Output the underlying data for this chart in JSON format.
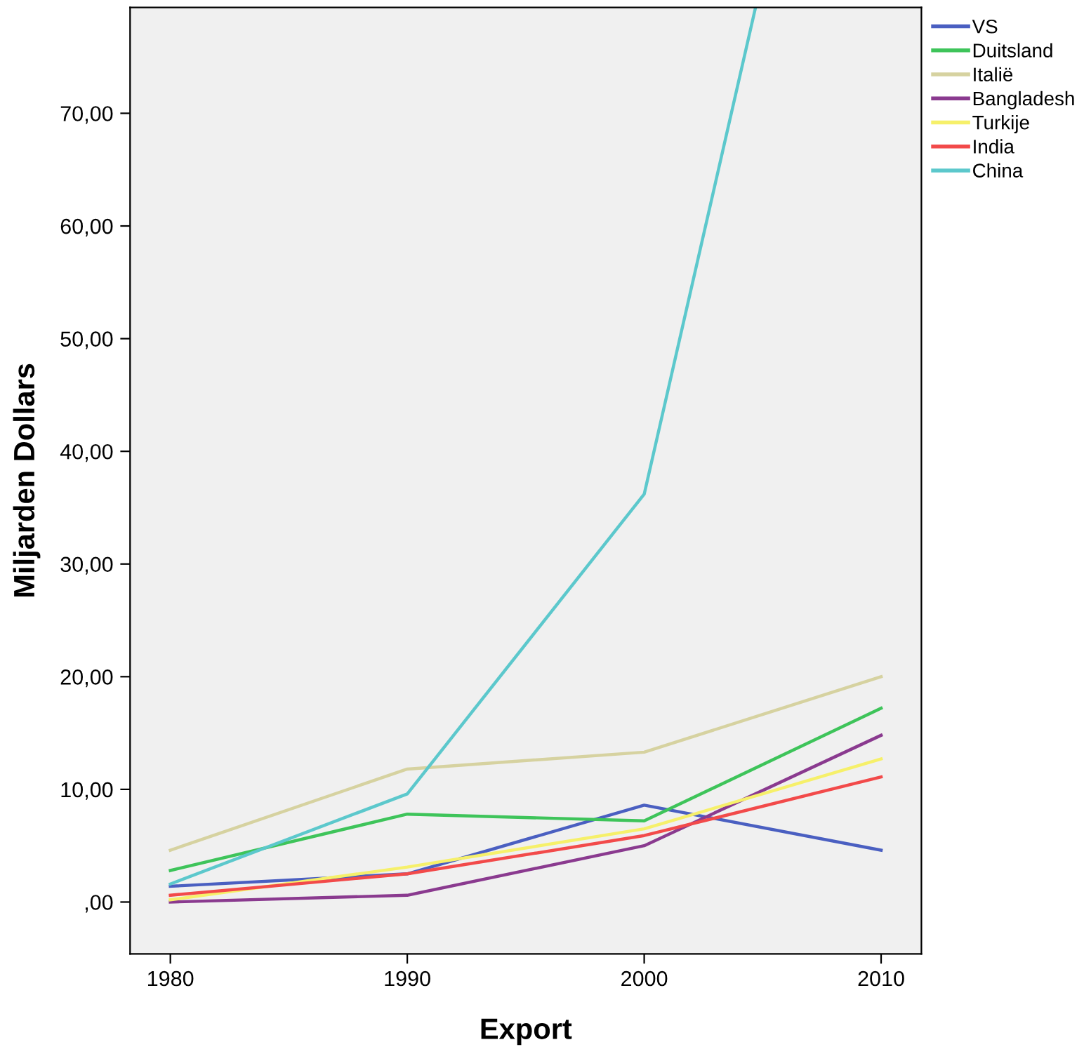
{
  "chart_data": {
    "type": "line",
    "xlabel": "Export",
    "ylabel": "Miljarden Dollars",
    "x": [
      1980,
      1990,
      2000,
      2010
    ],
    "xlim": [
      1978.3,
      2011.7
    ],
    "xticks": [
      1980,
      1990,
      2000,
      2010
    ],
    "ylim": [
      -4.6,
      79.4
    ],
    "yticks": [
      {
        "value": 0,
        "label": ",00"
      },
      {
        "value": 10,
        "label": "10,00"
      },
      {
        "value": 20,
        "label": "20,00"
      },
      {
        "value": 30,
        "label": "30,00"
      },
      {
        "value": 40,
        "label": "40,00"
      },
      {
        "value": 50,
        "label": "50,00"
      },
      {
        "value": 60,
        "label": "60,00"
      },
      {
        "value": 70,
        "label": "70,00"
      }
    ],
    "grid": false,
    "legend": "top right",
    "marker": "none",
    "line_style": "solid",
    "series": [
      {
        "name": "VS",
        "color": "#4a5fc1",
        "values": [
          1.4,
          2.5,
          8.6,
          4.6
        ]
      },
      {
        "name": "Duitsland",
        "color": "#3ec45a",
        "values": [
          2.8,
          7.8,
          7.2,
          17.2
        ]
      },
      {
        "name": "Italië",
        "color": "#d6d2a0",
        "values": [
          4.6,
          11.8,
          13.3,
          20.0
        ]
      },
      {
        "name": "Bangladesh",
        "color": "#8a3a8f",
        "values": [
          0.0,
          0.6,
          5.0,
          14.8
        ]
      },
      {
        "name": "Turkije",
        "color": "#f6f06a",
        "values": [
          0.2,
          3.1,
          6.5,
          12.7
        ]
      },
      {
        "name": "India",
        "color": "#f24a4a",
        "values": [
          0.6,
          2.5,
          5.9,
          11.1
        ]
      },
      {
        "name": "China",
        "color": "#5cc8cc",
        "x": [
          1980,
          1990,
          2000,
          2004.7
        ],
        "values": [
          1.6,
          9.6,
          36.2,
          79.4
        ]
      }
    ]
  }
}
